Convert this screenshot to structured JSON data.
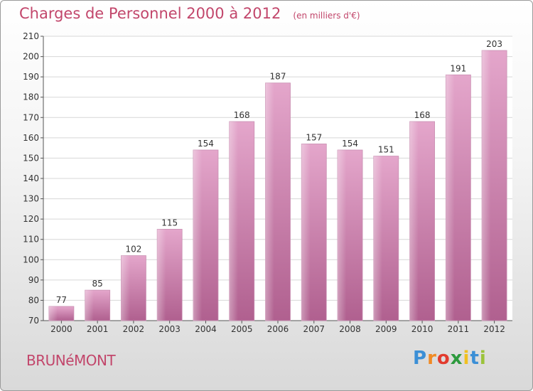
{
  "chart_data": {
    "type": "bar",
    "title": "Charges de Personnel 2000 à 2012",
    "subtitle": "(en milliers d'€)",
    "categories": [
      "2000",
      "2001",
      "2002",
      "2003",
      "2004",
      "2005",
      "2006",
      "2007",
      "2008",
      "2009",
      "2010",
      "2011",
      "2012"
    ],
    "values": [
      77,
      85,
      102,
      115,
      154,
      168,
      187,
      157,
      154,
      151,
      168,
      191,
      203
    ],
    "ylim": [
      70,
      210
    ],
    "yticks": [
      70,
      80,
      90,
      100,
      110,
      120,
      130,
      140,
      150,
      160,
      170,
      180,
      190,
      200,
      210
    ],
    "grid": true,
    "bar_color_top": "#e4a6cb",
    "bar_color_bottom": "#b0608f"
  },
  "footer": {
    "commune": "BRUNéMONT",
    "logo_text": "Proxiti",
    "logo_colors": [
      "#3b8fd6",
      "#f08a24",
      "#e23b2e",
      "#2d9a3e",
      "#f0c020",
      "#3b8fd6",
      "#9bc33a"
    ]
  },
  "colors": {
    "title": "#c2466b",
    "grid": "#d7d7d7",
    "axis_text": "#333333"
  }
}
